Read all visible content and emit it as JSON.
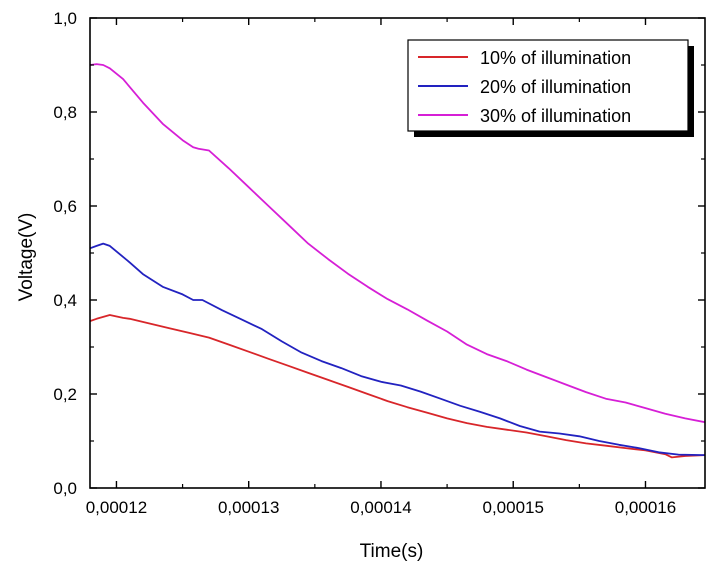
{
  "chart_data": {
    "type": "line",
    "title": "",
    "xlabel": "Time(s)",
    "ylabel": "Voltage(V)",
    "xlim": [
      0.000118,
      0.0001645
    ],
    "ylim": [
      0.0,
      1.0
    ],
    "x_ticks": [
      {
        "value": 0.00012,
        "label": "0,00012"
      },
      {
        "value": 0.00013,
        "label": "0,00013"
      },
      {
        "value": 0.00014,
        "label": "0,00014"
      },
      {
        "value": 0.00015,
        "label": "0,00015"
      },
      {
        "value": 0.00016,
        "label": "0,00016"
      }
    ],
    "y_ticks": [
      {
        "value": 0.0,
        "label": "0,0"
      },
      {
        "value": 0.2,
        "label": "0,2"
      },
      {
        "value": 0.4,
        "label": "0,4"
      },
      {
        "value": 0.6,
        "label": "0,6"
      },
      {
        "value": 0.8,
        "label": "0,8"
      },
      {
        "value": 1.0,
        "label": "1,0"
      }
    ],
    "grid": false,
    "legend_position": "top-right",
    "series": [
      {
        "name": "10% of illumination",
        "color": "#d8262a",
        "x": [
          0.000118,
          0.0001185,
          0.0001195,
          0.0001205,
          0.000121,
          0.0001225,
          0.000124,
          0.0001255,
          0.000127,
          0.0001285,
          0.00013,
          0.0001315,
          0.000133,
          0.0001345,
          0.000136,
          0.0001375,
          0.000139,
          0.0001405,
          0.000142,
          0.0001435,
          0.000145,
          0.0001465,
          0.000148,
          0.0001495,
          0.000151,
          0.0001525,
          0.000154,
          0.0001555,
          0.000157,
          0.0001585,
          0.00016,
          0.0001615,
          0.000162,
          0.000163,
          0.0001645
        ],
        "y": [
          0.355,
          0.36,
          0.368,
          0.362,
          0.36,
          0.35,
          0.34,
          0.33,
          0.32,
          0.305,
          0.29,
          0.275,
          0.26,
          0.245,
          0.23,
          0.215,
          0.2,
          0.185,
          0.172,
          0.16,
          0.148,
          0.138,
          0.13,
          0.124,
          0.118,
          0.11,
          0.102,
          0.095,
          0.09,
          0.085,
          0.08,
          0.072,
          0.065,
          0.068,
          0.07
        ]
      },
      {
        "name": "20% of illumination",
        "color": "#2222c0",
        "x": [
          0.000118,
          0.0001185,
          0.000119,
          0.0001195,
          0.000121,
          0.000122,
          0.0001235,
          0.000125,
          0.0001258,
          0.0001265,
          0.000128,
          0.0001295,
          0.000131,
          0.0001325,
          0.000134,
          0.0001355,
          0.000137,
          0.0001385,
          0.00014,
          0.0001415,
          0.000143,
          0.0001445,
          0.000146,
          0.0001475,
          0.000149,
          0.0001505,
          0.000152,
          0.0001535,
          0.000155,
          0.0001565,
          0.000158,
          0.0001595,
          0.000161,
          0.0001625,
          0.0001645
        ],
        "y": [
          0.51,
          0.515,
          0.52,
          0.515,
          0.48,
          0.455,
          0.428,
          0.412,
          0.4,
          0.4,
          0.378,
          0.358,
          0.338,
          0.312,
          0.288,
          0.27,
          0.255,
          0.238,
          0.226,
          0.218,
          0.205,
          0.19,
          0.175,
          0.162,
          0.148,
          0.132,
          0.12,
          0.116,
          0.11,
          0.1,
          0.092,
          0.085,
          0.076,
          0.071,
          0.07
        ]
      },
      {
        "name": "30% of illumination",
        "color": "#d61fd6",
        "x": [
          0.000118,
          0.0001185,
          0.000119,
          0.0001195,
          0.0001205,
          0.000122,
          0.0001235,
          0.000125,
          0.0001258,
          0.0001262,
          0.000127,
          0.0001285,
          0.00013,
          0.0001315,
          0.000133,
          0.0001345,
          0.000136,
          0.0001375,
          0.000139,
          0.0001405,
          0.000142,
          0.0001435,
          0.000145,
          0.0001465,
          0.000148,
          0.0001495,
          0.000151,
          0.0001525,
          0.000154,
          0.0001555,
          0.000157,
          0.0001585,
          0.00016,
          0.0001615,
          0.000163,
          0.0001645
        ],
        "y": [
          0.9,
          0.902,
          0.9,
          0.893,
          0.87,
          0.82,
          0.775,
          0.74,
          0.725,
          0.722,
          0.718,
          0.68,
          0.64,
          0.6,
          0.56,
          0.52,
          0.487,
          0.456,
          0.428,
          0.402,
          0.38,
          0.356,
          0.333,
          0.305,
          0.285,
          0.27,
          0.252,
          0.236,
          0.22,
          0.204,
          0.19,
          0.182,
          0.17,
          0.158,
          0.148,
          0.14
        ]
      }
    ]
  }
}
